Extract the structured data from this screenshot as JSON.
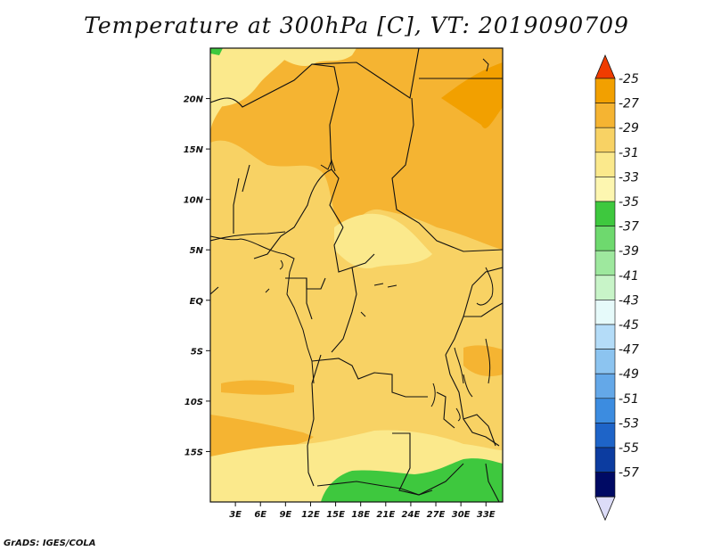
{
  "title": "Temperature at 300hPa [C], VT: 2019090709",
  "credit": "GrADS: IGES/COLA",
  "map": {
    "lon_range": [
      0,
      35
    ],
    "lat_range": [
      -20,
      25
    ],
    "lat_ticks": [
      {
        "lat": 20,
        "label": "20N"
      },
      {
        "lat": 15,
        "label": "15N"
      },
      {
        "lat": 10,
        "label": "10N"
      },
      {
        "lat": 5,
        "label": "5N"
      },
      {
        "lat": 0,
        "label": "EQ"
      },
      {
        "lat": -5,
        "label": "5S"
      },
      {
        "lat": -10,
        "label": "10S"
      },
      {
        "lat": -15,
        "label": "15S"
      }
    ],
    "lon_ticks": [
      {
        "lon": 3,
        "label": "3E"
      },
      {
        "lon": 6,
        "label": "6E"
      },
      {
        "lon": 9,
        "label": "9E"
      },
      {
        "lon": 12,
        "label": "12E"
      },
      {
        "lon": 15,
        "label": "15E"
      },
      {
        "lon": 18,
        "label": "18E"
      },
      {
        "lon": 21,
        "label": "21E"
      },
      {
        "lon": 24,
        "label": "24E"
      },
      {
        "lon": 27,
        "label": "27E"
      },
      {
        "lon": 30,
        "label": "30E"
      },
      {
        "lon": 33,
        "label": "33E"
      }
    ]
  },
  "colorbar": {
    "levels": [
      "-25",
      "-27",
      "-29",
      "-31",
      "-33",
      "-35",
      "-37",
      "-39",
      "-41",
      "-43",
      "-45",
      "-47",
      "-49",
      "-51",
      "-53",
      "-55",
      "-57"
    ],
    "colors": [
      "#f26b00",
      "#f2a000",
      "#f5b432",
      "#f8d264",
      "#fbe98c",
      "#fdf6b0",
      "#3ec83e",
      "#6ed96e",
      "#9ee89e",
      "#c8f4c8",
      "#e6fafa",
      "#b4dcf8",
      "#8cc4f0",
      "#64a8e8",
      "#3c8ce0",
      "#1e64c8",
      "#0c3ca0",
      "#000a64",
      "#dcdcf8"
    ],
    "top_arrow_color": "#f03c00",
    "bottom_arrow_color": "#dcdcf8"
  }
}
